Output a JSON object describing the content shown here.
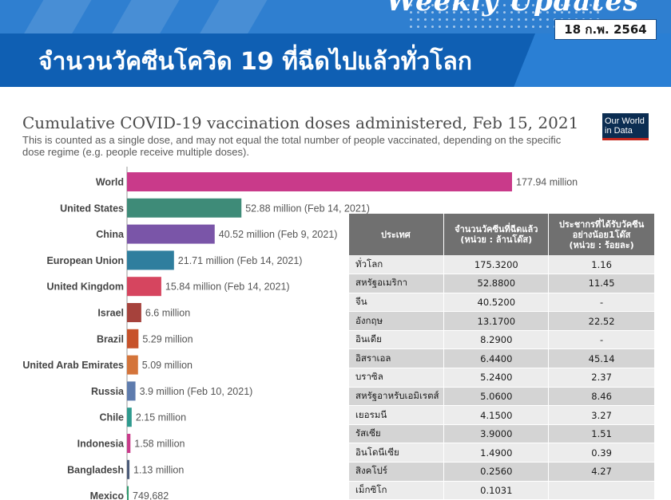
{
  "header": {
    "script_text": "Weekly Updates",
    "title": "จำนวนวัคซีนโควิด 19 ที่ฉีดไปแล้วทั่วโลก",
    "date": "18 ก.พ. 2564"
  },
  "logo": {
    "line1": "Our World",
    "line2": "in Data"
  },
  "chart_data": {
    "type": "bar",
    "orientation": "horizontal",
    "title": "Cumulative COVID-19 vaccination doses administered, Feb 15, 2021",
    "subtitle": "This is counted as a single dose, and may not equal the total number of people vaccinated, depending on the specific dose regime (e.g. people receive multiple doses).",
    "unit": "doses",
    "xlim": [
      0,
      177940000
    ],
    "grid": false,
    "bars": [
      {
        "category": "World",
        "value": 177940000,
        "label": "177.94 million",
        "color": "#c93a8a"
      },
      {
        "category": "United States",
        "value": 52880000,
        "label": "52.88 million (Feb 14, 2021)",
        "color": "#3e8b78"
      },
      {
        "category": "China",
        "value": 40520000,
        "label": "40.52 million (Feb 9, 2021)",
        "color": "#7a55a8"
      },
      {
        "category": "European Union",
        "value": 21710000,
        "label": "21.71 million (Feb 14, 2021)",
        "color": "#2f7e9e"
      },
      {
        "category": "United Kingdom",
        "value": 15840000,
        "label": "15.84 million (Feb 14, 2021)",
        "color": "#d6455f"
      },
      {
        "category": "Israel",
        "value": 6600000,
        "label": "6.6 million",
        "color": "#a6423c"
      },
      {
        "category": "Brazil",
        "value": 5290000,
        "label": "5.29 million",
        "color": "#c7522a"
      },
      {
        "category": "United Arab Emirates",
        "value": 5090000,
        "label": "5.09 million",
        "color": "#d4743a"
      },
      {
        "category": "Russia",
        "value": 3900000,
        "label": "3.9 million (Feb 10, 2021)",
        "color": "#5e7cae"
      },
      {
        "category": "Chile",
        "value": 2150000,
        "label": "2.15 million",
        "color": "#2e9a8e"
      },
      {
        "category": "Indonesia",
        "value": 1580000,
        "label": "1.58 million",
        "color": "#c93a8a"
      },
      {
        "category": "Bangladesh",
        "value": 1130000,
        "label": "1.13 million",
        "color": "#4a5a78"
      },
      {
        "category": "Mexico",
        "value": 749682,
        "label": "749,682",
        "color": "#2e9a6e"
      }
    ]
  },
  "table": {
    "headers": [
      "ประเทศ",
      "จำนวนวัคซีนที่ฉีดแล้ว\n(หน่วย : ล้านโด๊ส)",
      "ประชากรที่ได้รับวัคซีน\nอย่างน้อย1โด๊ส\n(หน่วย : ร้อยละ)"
    ],
    "rows": [
      [
        "ทั่วโลก",
        "175.3200",
        "1.16"
      ],
      [
        "สหรัฐอเมริกา",
        "52.8800",
        "11.45"
      ],
      [
        "จีน",
        "40.5200",
        "-"
      ],
      [
        "อังกฤษ",
        "13.1700",
        "22.52"
      ],
      [
        "อินเดีย",
        "8.2900",
        "-"
      ],
      [
        "อิสราเอล",
        "6.4400",
        "45.14"
      ],
      [
        "บราซิล",
        "5.2400",
        "2.37"
      ],
      [
        "สหรัฐอาหรับเอมิเรตส์",
        "5.0600",
        "8.46"
      ],
      [
        "เยอรมนี",
        "4.1500",
        "3.27"
      ],
      [
        "รัสเซีย",
        "3.9000",
        "1.51"
      ],
      [
        "อินโดนีเซีย",
        "1.4900",
        "0.39"
      ],
      [
        "สิงคโปร์",
        "0.2560",
        "4.27"
      ],
      [
        "เม็กซิโก",
        "0.1031",
        ""
      ]
    ]
  }
}
